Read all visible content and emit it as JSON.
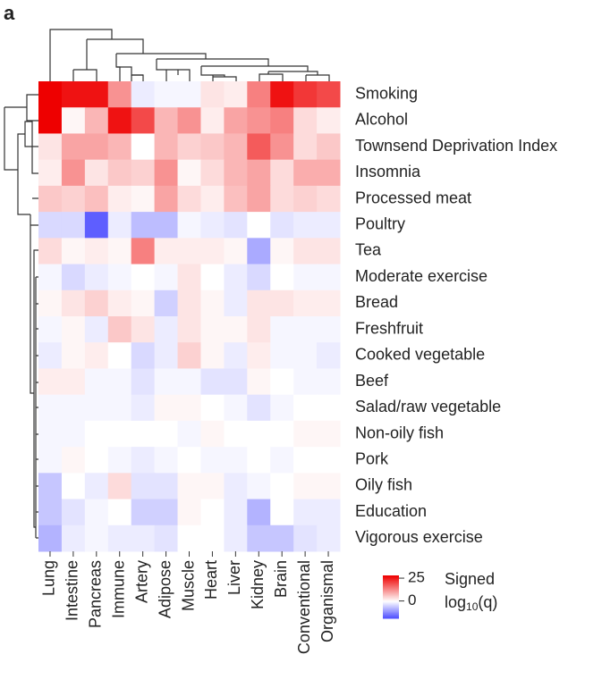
{
  "panel_label": "a",
  "chart_data": {
    "type": "heatmap",
    "rows": [
      "Smoking",
      "Alcohol",
      "Townsend Deprivation Index",
      "Insomnia",
      "Processed meat",
      "Poultry",
      "Tea",
      "Moderate exercise",
      "Bread",
      "Freshfruit",
      "Cooked vegetable",
      "Beef",
      "Salad/raw vegetable",
      "Non-oily fish",
      "Pork",
      "Oily fish",
      "Education",
      "Vigorous exercise"
    ],
    "columns": [
      "Lung",
      "Intestine",
      "Pancreas",
      "Immune",
      "Artery",
      "Adipose",
      "Muscle",
      "Heart",
      "Liver",
      "Kidney",
      "Brain",
      "Conventional",
      "Organismal"
    ],
    "values": [
      [
        28,
        26,
        26,
        12,
        -2,
        -1,
        -1,
        3,
        2,
        14,
        26,
        22,
        20
      ],
      [
        28,
        1,
        8,
        26,
        20,
        8,
        12,
        2,
        10,
        12,
        14,
        4,
        2
      ],
      [
        3,
        10,
        10,
        8,
        0,
        8,
        5,
        6,
        8,
        18,
        12,
        4,
        6
      ],
      [
        2,
        12,
        3,
        6,
        5,
        12,
        1,
        4,
        8,
        10,
        4,
        9,
        9
      ],
      [
        6,
        5,
        7,
        2,
        1,
        10,
        4,
        2,
        7,
        10,
        4,
        5,
        4
      ],
      [
        -4,
        -4,
        -17,
        -2,
        -7,
        -7,
        -1,
        -2,
        -3,
        0,
        -3,
        -2,
        -2
      ],
      [
        4,
        1,
        2,
        1,
        14,
        2,
        2,
        2,
        1,
        -9,
        1,
        3,
        3
      ],
      [
        -1,
        -4,
        -2,
        -1,
        0,
        -1,
        3,
        0,
        -2,
        -4,
        0,
        -1,
        -1
      ],
      [
        1,
        3,
        5,
        2,
        1,
        -5,
        3,
        1,
        -2,
        3,
        3,
        2,
        2
      ],
      [
        -1,
        1,
        -2,
        6,
        3,
        -2,
        3,
        1,
        1,
        3,
        -1,
        -1,
        -1
      ],
      [
        -2,
        1,
        2,
        0,
        -4,
        -2,
        5,
        1,
        -2,
        2,
        -1,
        -1,
        -2
      ],
      [
        2,
        2,
        -1,
        -1,
        -3,
        -1,
        -1,
        -3,
        -3,
        1,
        0,
        -1,
        -1
      ],
      [
        -1,
        -1,
        -1,
        -1,
        -2,
        1,
        1,
        0,
        -1,
        -3,
        -1,
        0,
        0
      ],
      [
        -1,
        -1,
        0,
        0,
        0,
        0,
        -1,
        1,
        0,
        0,
        0,
        1,
        1
      ],
      [
        -1,
        1,
        0,
        -1,
        -2,
        -1,
        0,
        -1,
        -1,
        0,
        -1,
        0,
        0
      ],
      [
        -6,
        0,
        -2,
        4,
        -3,
        -3,
        1,
        1,
        -2,
        -1,
        0,
        1,
        1
      ],
      [
        -6,
        -3,
        -1,
        0,
        -5,
        -5,
        1,
        0,
        -2,
        -8,
        0,
        -2,
        -2
      ],
      [
        -8,
        -2,
        -1,
        -2,
        -2,
        -3,
        0,
        0,
        -2,
        -6,
        -6,
        -3,
        -2
      ]
    ],
    "zlim": [
      -19,
      28
    ],
    "zticks": [
      25,
      0
    ],
    "low_color": "#4b4bff",
    "mid_color": "#ffffff",
    "high_color": "#ee0000",
    "colorbar_label": {
      "line1": "Signed",
      "base": "log",
      "subscript": "10",
      "argument": "(q)"
    }
  }
}
